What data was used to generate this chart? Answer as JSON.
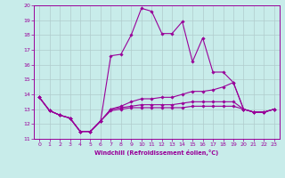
{
  "xlabel": "Windchill (Refroidissement éolien,°C)",
  "bg_color": "#c8ecea",
  "line_color": "#990099",
  "grid_color": "#b0cccc",
  "xlim": [
    -0.5,
    23.5
  ],
  "ylim": [
    11,
    20
  ],
  "xticks": [
    0,
    1,
    2,
    3,
    4,
    5,
    6,
    7,
    8,
    9,
    10,
    11,
    12,
    13,
    14,
    15,
    16,
    17,
    18,
    19,
    20,
    21,
    22,
    23
  ],
  "yticks": [
    11,
    12,
    13,
    14,
    15,
    16,
    17,
    18,
    19,
    20
  ],
  "lines": [
    {
      "x": [
        0,
        1,
        2,
        3,
        4,
        5,
        6,
        7,
        8,
        9,
        10,
        11,
        12,
        13,
        14,
        15,
        16,
        17,
        18,
        19,
        20,
        21,
        22,
        23
      ],
      "y": [
        13.8,
        12.9,
        12.6,
        12.4,
        11.5,
        11.5,
        12.2,
        16.6,
        16.7,
        18.0,
        19.8,
        19.6,
        18.1,
        18.1,
        18.9,
        16.2,
        17.8,
        15.5,
        15.5,
        14.8,
        13.0,
        12.8,
        12.8,
        13.0
      ]
    },
    {
      "x": [
        0,
        1,
        2,
        3,
        4,
        5,
        6,
        7,
        8,
        9,
        10,
        11,
        12,
        13,
        14,
        15,
        16,
        17,
        18,
        19,
        20,
        21,
        22,
        23
      ],
      "y": [
        13.8,
        12.9,
        12.6,
        12.4,
        11.5,
        11.5,
        12.2,
        13.0,
        13.2,
        13.5,
        13.7,
        13.7,
        13.8,
        13.8,
        14.0,
        14.2,
        14.2,
        14.3,
        14.5,
        14.8,
        13.0,
        12.8,
        12.8,
        13.0
      ]
    },
    {
      "x": [
        0,
        1,
        2,
        3,
        4,
        5,
        6,
        7,
        8,
        9,
        10,
        11,
        12,
        13,
        14,
        15,
        16,
        17,
        18,
        19,
        20,
        21,
        22,
        23
      ],
      "y": [
        13.8,
        12.9,
        12.6,
        12.4,
        11.5,
        11.5,
        12.2,
        13.0,
        13.1,
        13.2,
        13.3,
        13.3,
        13.3,
        13.3,
        13.4,
        13.5,
        13.5,
        13.5,
        13.5,
        13.5,
        13.0,
        12.8,
        12.8,
        13.0
      ]
    },
    {
      "x": [
        0,
        1,
        2,
        3,
        4,
        5,
        6,
        7,
        8,
        9,
        10,
        11,
        12,
        13,
        14,
        15,
        16,
        17,
        18,
        19,
        20,
        21,
        22,
        23
      ],
      "y": [
        13.8,
        12.9,
        12.6,
        12.4,
        11.5,
        11.5,
        12.2,
        12.9,
        13.0,
        13.1,
        13.1,
        13.1,
        13.1,
        13.1,
        13.1,
        13.2,
        13.2,
        13.2,
        13.2,
        13.2,
        13.0,
        12.8,
        12.8,
        13.0
      ]
    }
  ]
}
